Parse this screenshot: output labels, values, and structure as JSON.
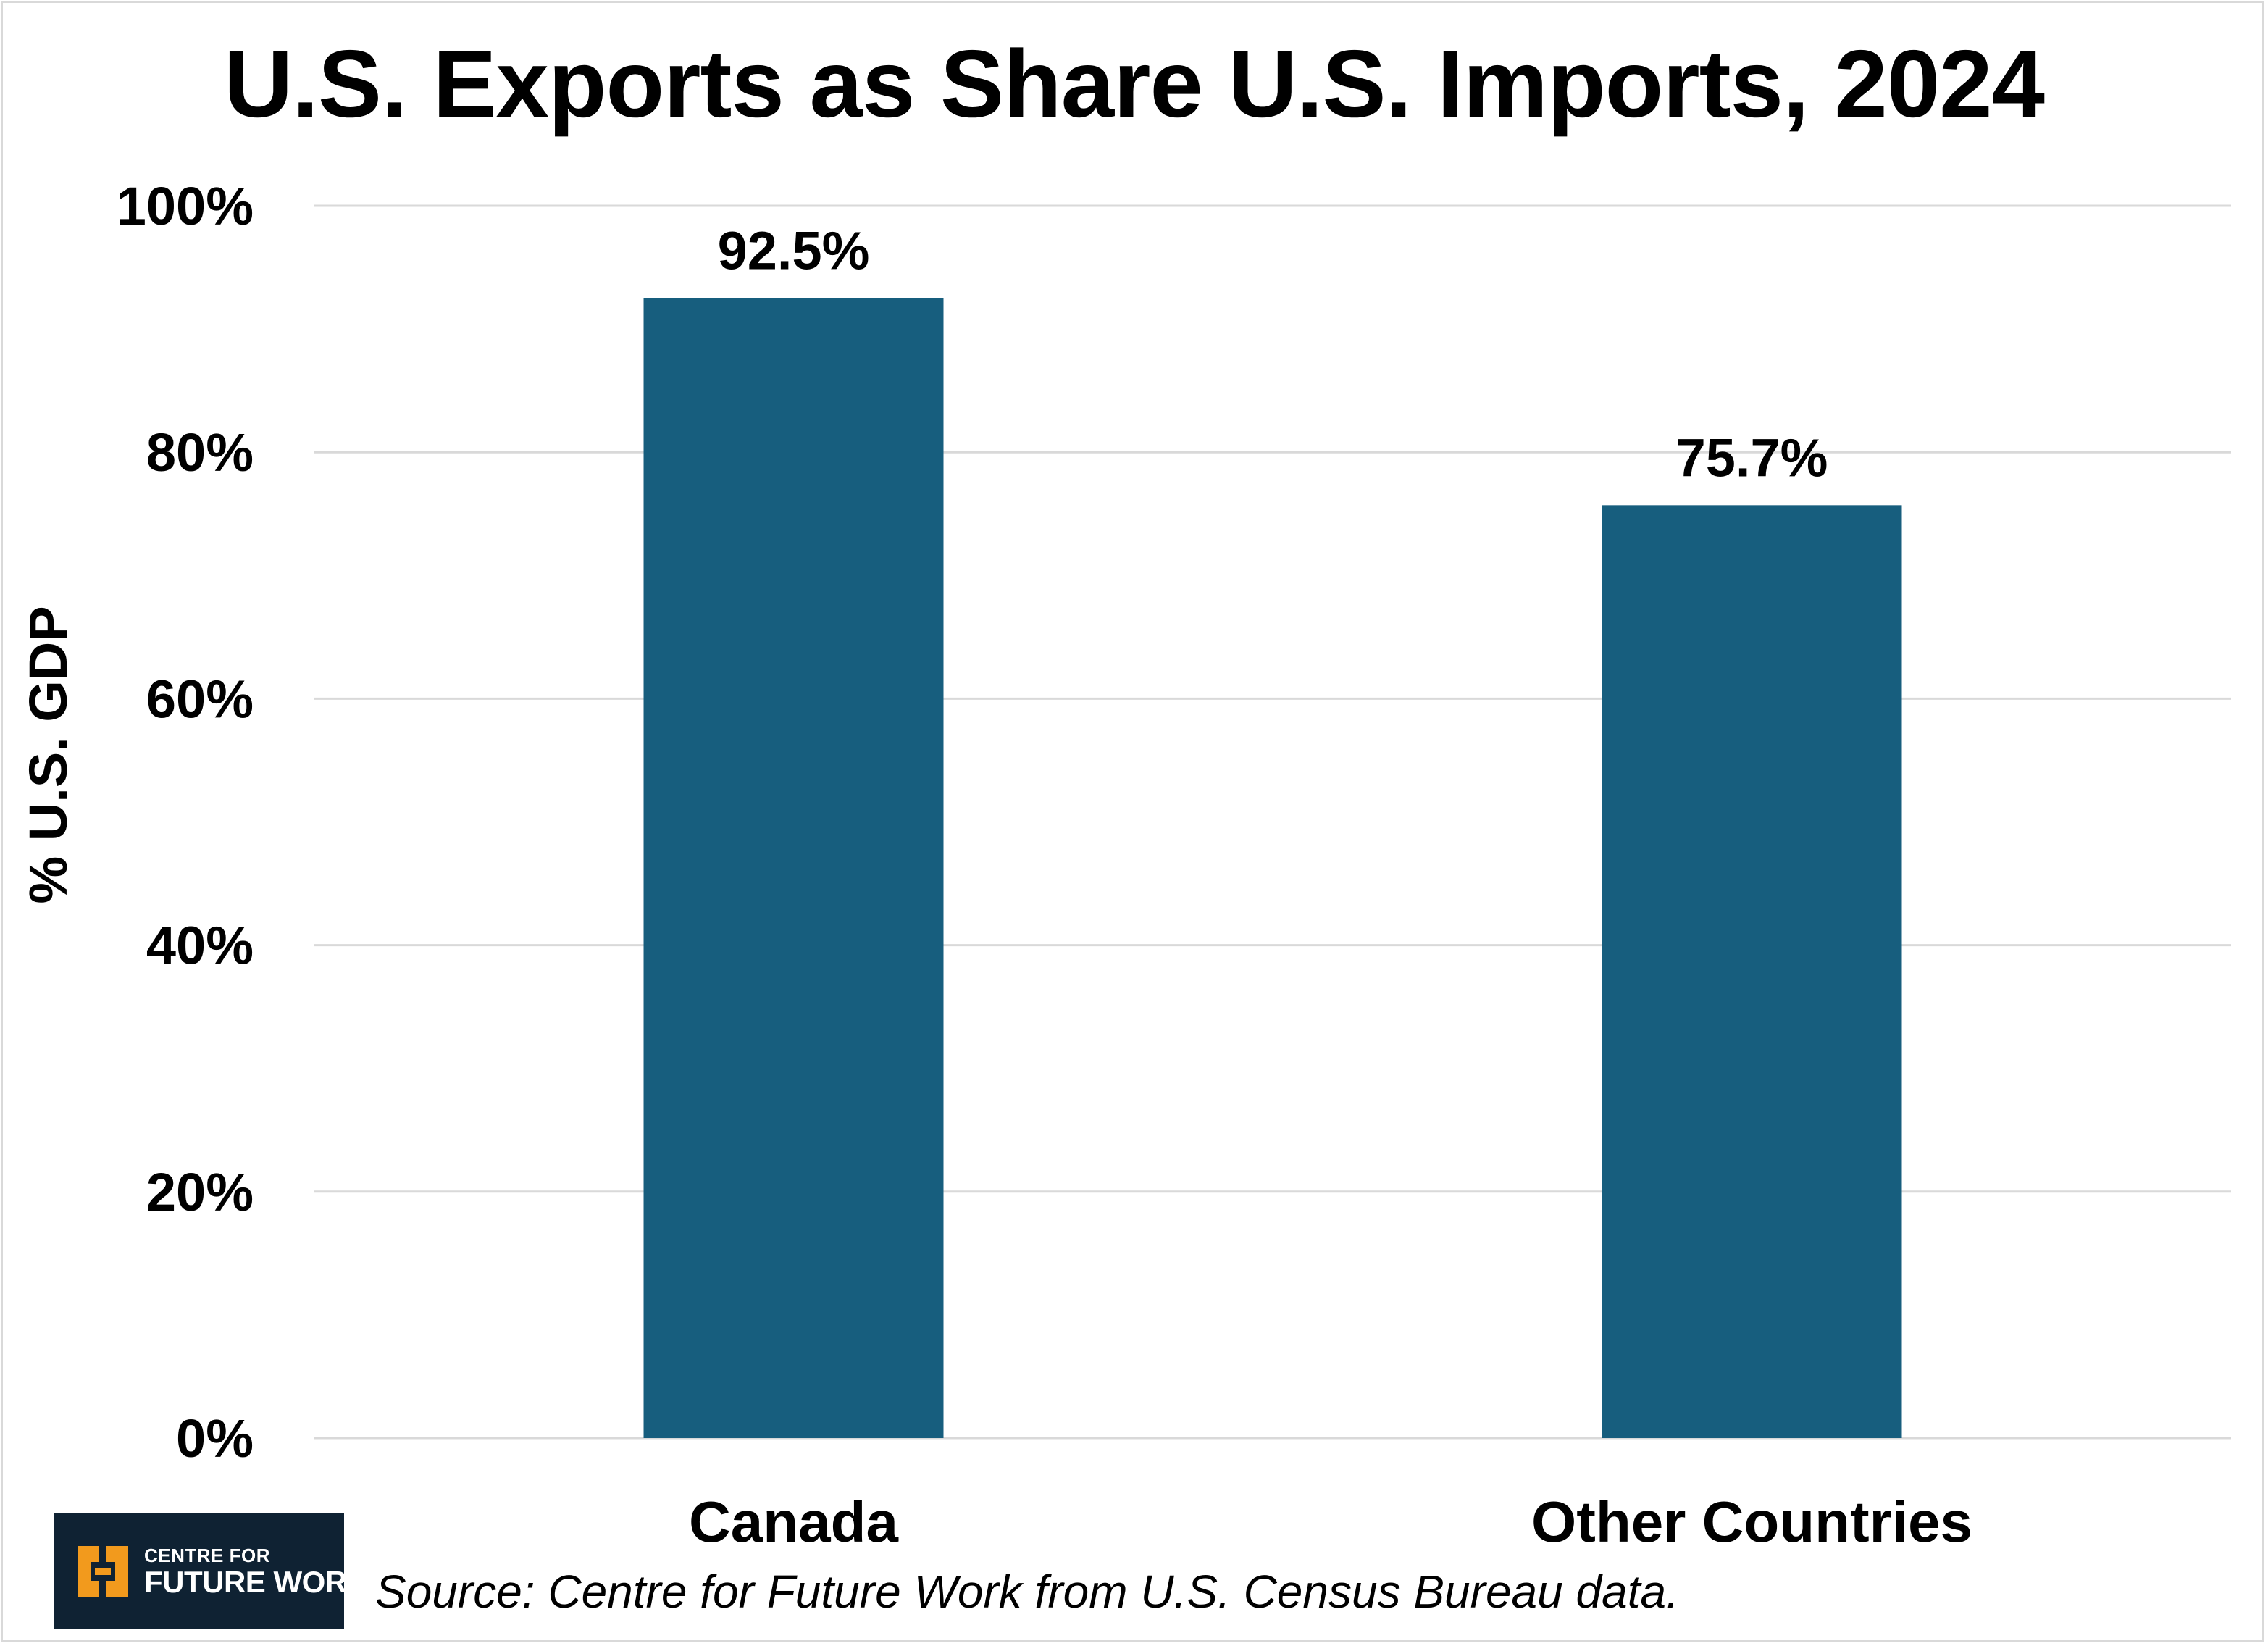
{
  "chart_data": {
    "type": "bar",
    "title": "U.S. Exports as Share U.S. Imports, 2024",
    "ylabel": "% U.S. GDP",
    "xlabel": "",
    "categories": [
      "Canada",
      "Other Countries"
    ],
    "values": [
      92.5,
      75.7
    ],
    "data_labels": [
      "92.5%",
      "75.7%"
    ],
    "ylim": [
      0,
      100
    ],
    "yticks": [
      0,
      20,
      40,
      60,
      80,
      100
    ],
    "ytick_labels": [
      "0%",
      "20%",
      "40%",
      "60%",
      "80%",
      "100%"
    ],
    "grid": true,
    "legend": "none",
    "colors": {
      "bar": "#175e7e",
      "grid": "#d9d9d9"
    }
  },
  "footer": {
    "source": "Source: Centre for Future Work from U.S. Census Bureau data.",
    "logo_line1": "CENTRE FOR",
    "logo_line2": "FUTURE WORK",
    "logo_icon": "centre-for-future-work-logo-icon",
    "logo_colors": {
      "background": "#0f2233",
      "mark": "#f29a1d"
    }
  }
}
